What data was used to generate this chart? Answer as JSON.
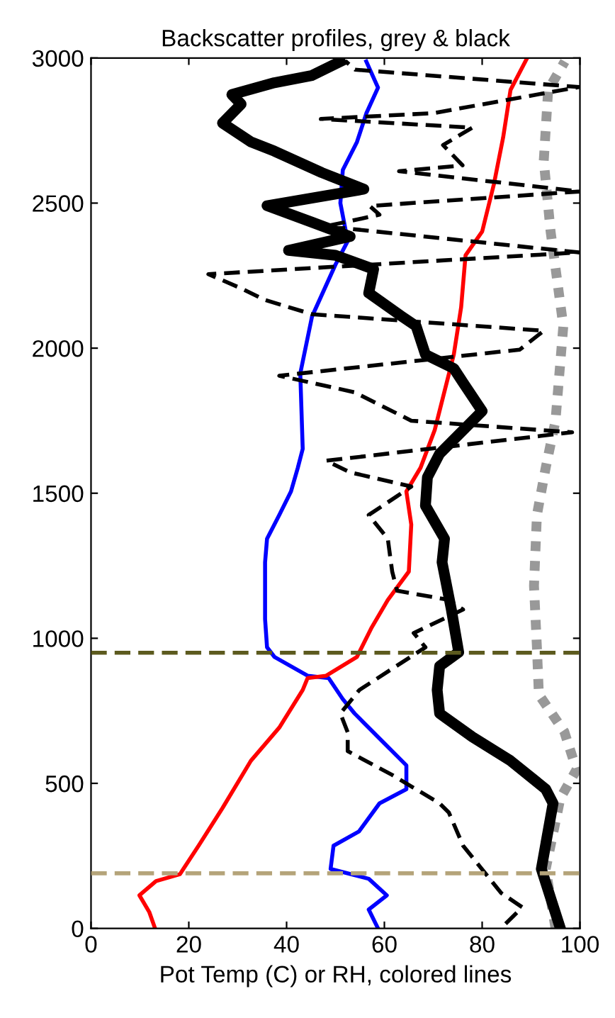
{
  "chart_data": {
    "type": "line",
    "title": "Backscatter profiles, grey & black",
    "xlabel": "Pot Temp (C) or RH, colored lines",
    "xlim": [
      0,
      100
    ],
    "xticks": [
      0,
      20,
      40,
      60,
      80,
      100
    ],
    "ylim": [
      0,
      3000
    ],
    "yticks": [
      0,
      500,
      1000,
      1500,
      2000,
      2500,
      3000
    ],
    "grid": false,
    "legend": false,
    "marker": "none",
    "series": [
      {
        "color": "#0000ff",
        "line_style": "solid",
        "x": [
          58.7,
          56.8,
          60.5,
          56.8,
          49,
          49.6,
          54.8,
          59,
          64.5,
          64.5,
          59.7,
          53.9,
          51.5,
          48.6,
          44.3,
          37.5,
          36,
          35.6,
          35.6,
          36,
          38.5,
          40.9,
          42.3,
          43.3,
          42.8,
          45.2,
          50,
          52.5,
          51,
          51.5,
          54.4,
          56.3,
          58.7,
          56.3
        ],
        "values": [
          0,
          65,
          114,
          171,
          205,
          285,
          334,
          431,
          480,
          562,
          643,
          741,
          790,
          863,
          871,
          936,
          969,
          1066,
          1262,
          1343,
          1425,
          1506,
          1588,
          1653,
          1913,
          2109,
          2288,
          2369,
          2500,
          2614,
          2711,
          2809,
          2898,
          2988
        ]
      },
      {
        "color": "#ff0000",
        "line_style": "solid",
        "x": [
          13.1,
          11.9,
          9.9,
          13.3,
          18.2,
          22,
          26.9,
          32.7,
          38.5,
          43.3,
          44.3,
          48.1,
          54.4,
          57.3,
          60.7,
          65,
          65.5,
          64.5,
          67.4,
          70.3,
          74.2,
          75.7,
          76.6,
          80,
          82.4,
          84.3,
          85.8,
          89.2
        ],
        "values": [
          0,
          57,
          114,
          163,
          187,
          285,
          415,
          578,
          692,
          822,
          863,
          871,
          936,
          1034,
          1132,
          1230,
          1392,
          1506,
          1588,
          1718,
          1978,
          2141,
          2320,
          2402,
          2565,
          2727,
          2890,
          3000
        ]
      },
      {
        "color": "#999999",
        "line_style": "dotted",
        "x": [
          95,
          93,
          96,
          99.3,
          96.8,
          91.6,
          91.2,
          90.6,
          91.2,
          93,
          95,
          96.6,
          94,
          92.6,
          93.5,
          96.9
        ],
        "values": [
          0,
          205,
          449,
          547,
          678,
          806,
          969,
          1181,
          1425,
          1588,
          1750,
          2076,
          2402,
          2646,
          2890,
          2988
        ]
      },
      {
        "color": "#000000",
        "line_style": "dashed",
        "x": [
          84.8,
          88.2,
          83.9,
          76.1,
          73.2,
          71.3,
          61.6,
          52.5,
          52.5,
          51,
          54.9,
          68.4,
          66,
          76.1,
          73.2,
          62.6,
          61.6,
          60.7,
          56.8,
          62.6,
          65.5,
          53,
          48.1,
          98.4,
          65.5,
          53.9,
          38.5,
          87.7,
          92.6,
          45.2,
          35.6,
          30.7,
          24,
          99.8,
          48,
          59,
          57,
          100,
          63,
          76,
          72,
          78,
          47,
          70,
          99.8,
          54,
          52
        ],
        "values": [
          16,
          73,
          122,
          285,
          399,
          431,
          529,
          611,
          676,
          741,
          822,
          969,
          1018,
          1099,
          1132,
          1164,
          1230,
          1343,
          1425,
          1490,
          1523,
          1572,
          1612,
          1710,
          1750,
          1848,
          1905,
          1995,
          2060,
          2117,
          2166,
          2206,
          2255,
          2330,
          2420,
          2460,
          2490,
          2540,
          2610,
          2630,
          2700,
          2760,
          2790,
          2810,
          2900,
          2960,
          2990
        ]
      },
      {
        "color": "#000000",
        "line_style": "solid",
        "x": [
          96,
          92.1,
          94.5,
          93,
          85.8,
          78,
          71.3,
          70.8,
          71.3,
          75.2,
          73.7,
          71.8,
          72.3,
          68.4,
          68.8,
          71.3,
          80,
          76.1,
          74.2,
          68.4,
          66.5,
          63.6,
          56.8,
          57.8,
          50,
          40.4,
          53,
          45.2,
          36,
          55.8,
          47.2,
          37.5,
          32.7,
          26.9,
          30.7,
          28.8,
          37.5,
          45.2,
          51
        ],
        "values": [
          0,
          205,
          431,
          480,
          578,
          660,
          741,
          822,
          904,
          952,
          1099,
          1262,
          1343,
          1457,
          1555,
          1636,
          1783,
          1881,
          1930,
          1978,
          2076,
          2109,
          2190,
          2272,
          2320,
          2337,
          2385,
          2434,
          2491,
          2548,
          2605,
          2679,
          2711,
          2776,
          2841,
          2874,
          2915,
          2940,
          2988
        ]
      }
    ],
    "ref_lines": [
      {
        "axis": "y",
        "value": 950,
        "color": "#5c5a1e",
        "line_style": "dashed"
      },
      {
        "axis": "y",
        "value": 190,
        "color": "#b5a47a",
        "line_style": "dashed"
      }
    ]
  }
}
